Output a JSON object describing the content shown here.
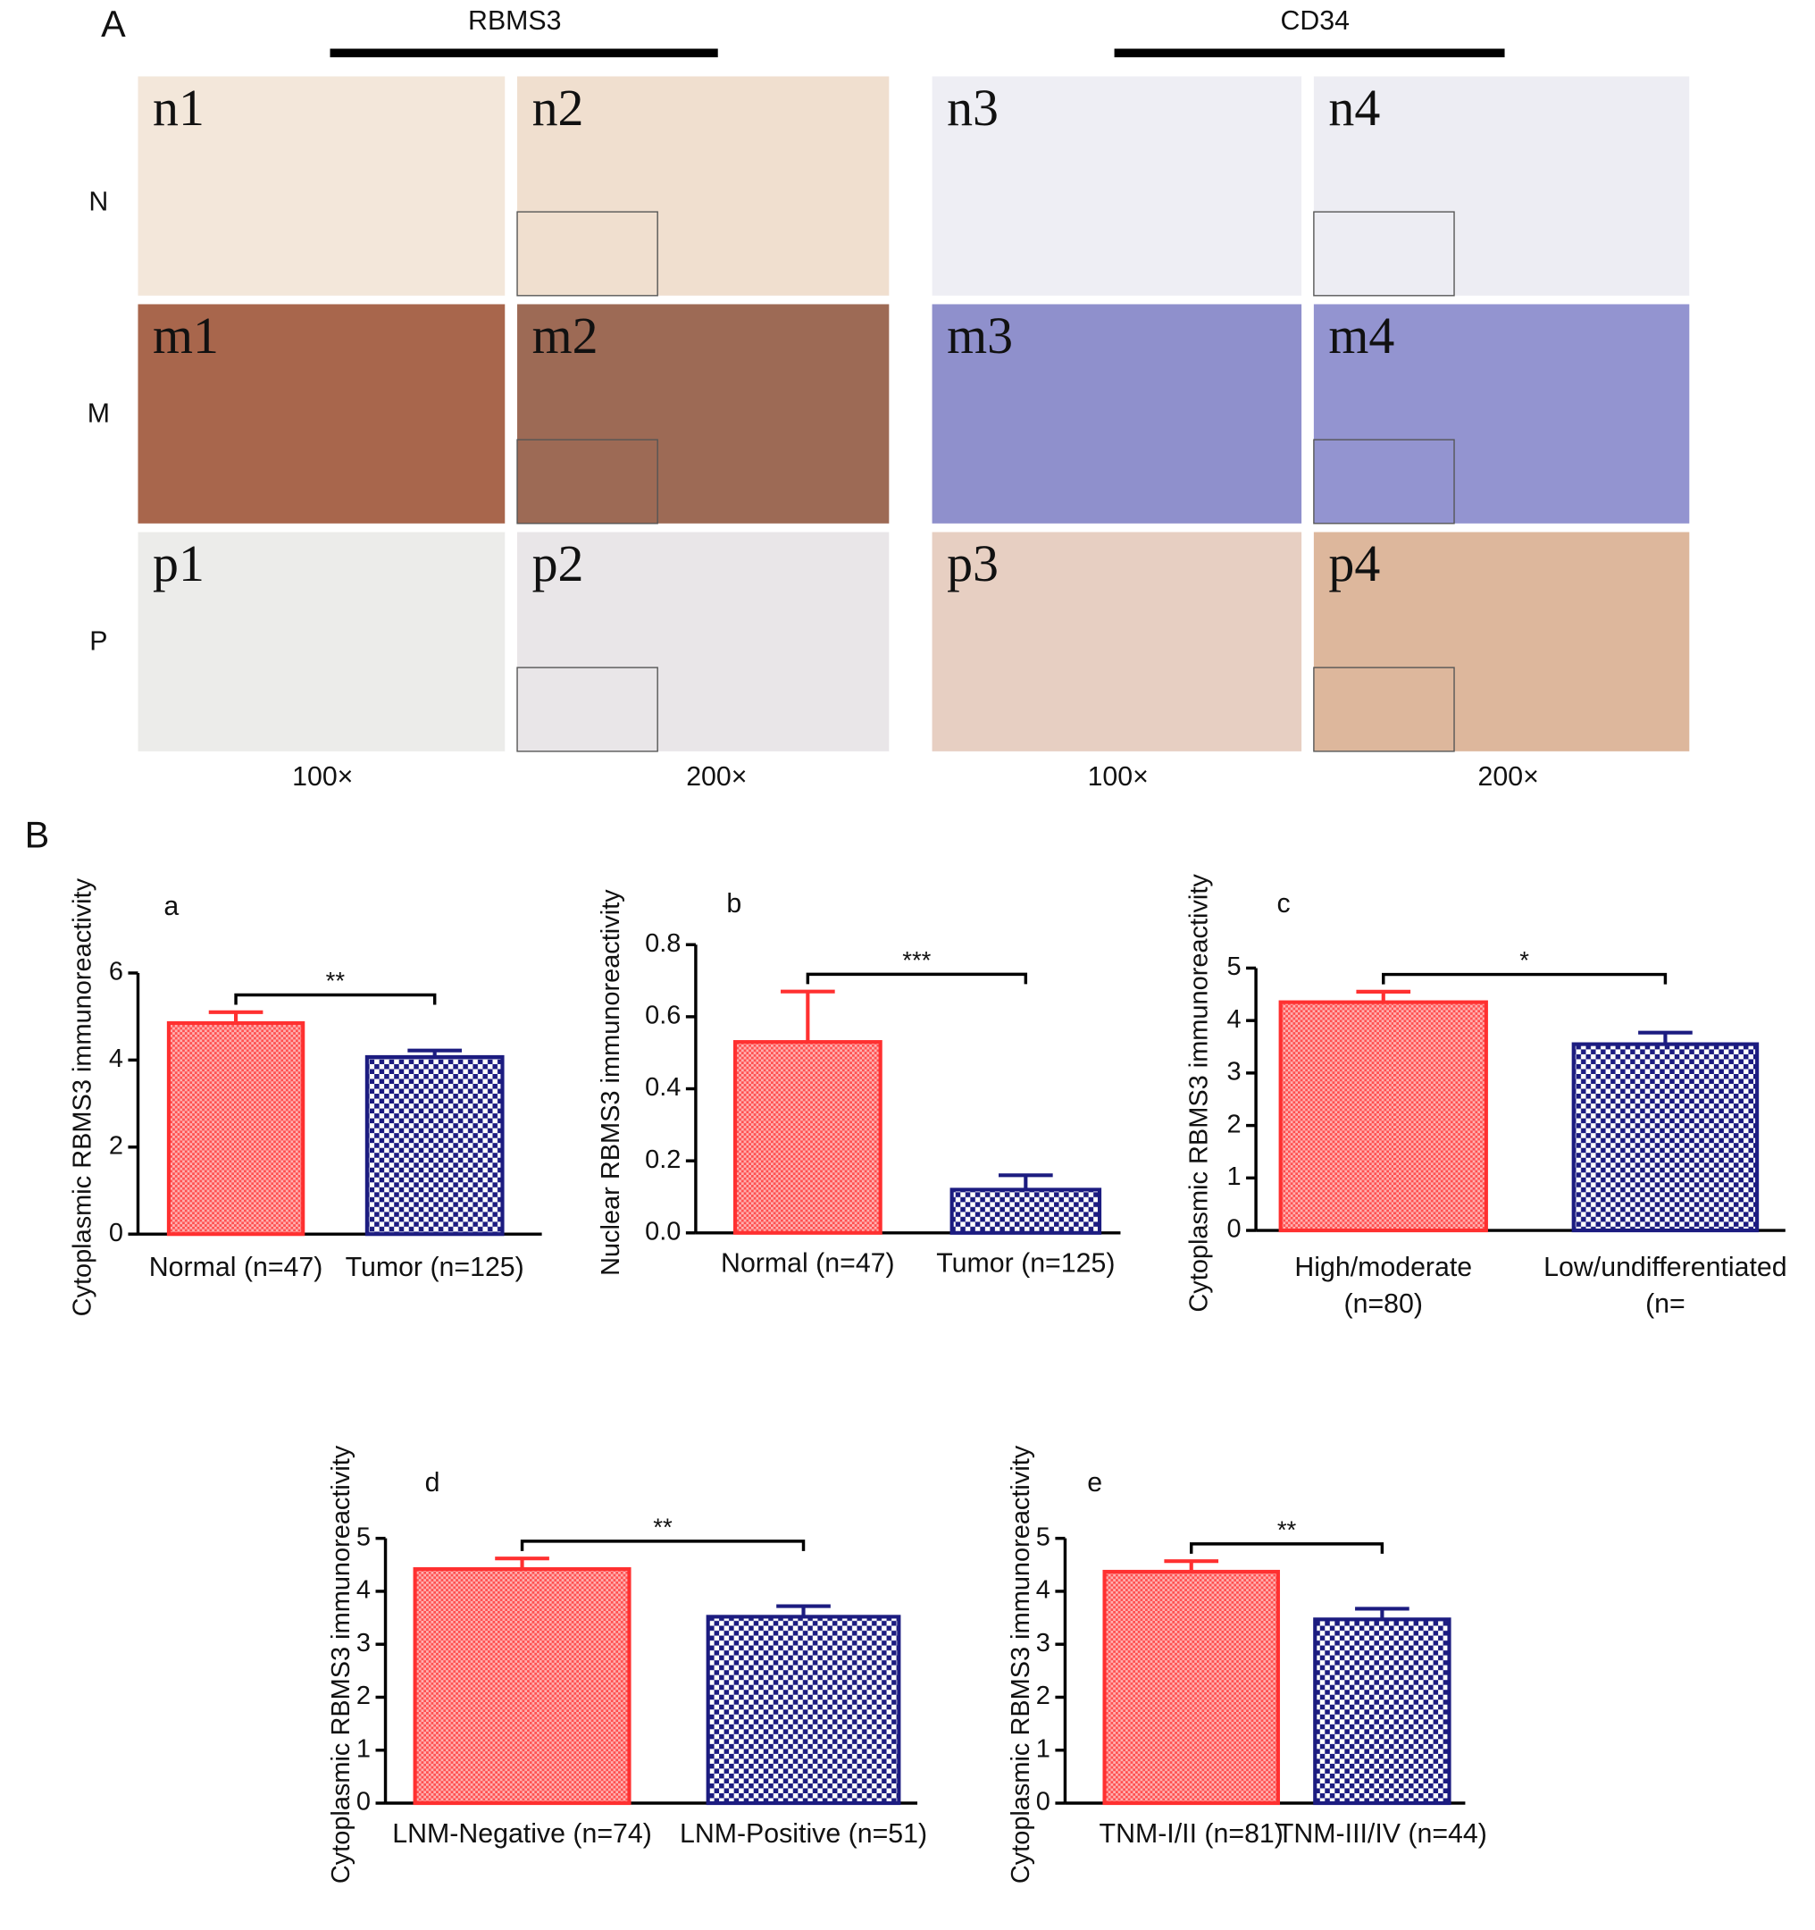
{
  "panel_a": {
    "label": "A",
    "groups": [
      {
        "title": "RBMS3"
      },
      {
        "title": "CD34"
      }
    ],
    "rows": [
      "N",
      "M",
      "P"
    ],
    "images": [
      [
        "n1",
        "n2",
        "n3",
        "n4"
      ],
      [
        "m1",
        "m2",
        "m3",
        "m4"
      ],
      [
        "p1",
        "p2",
        "p3",
        "p4"
      ]
    ],
    "magnifications": [
      "100×",
      "200×",
      "100×",
      "200×"
    ]
  },
  "panel_b": {
    "label": "B"
  },
  "chart_data": [
    {
      "type": "bar",
      "panel": "a",
      "ylabel": "Cytoplasmic RBMS3 immunoreactivity",
      "categories": [
        "Normal (n=47)",
        "Tumor (n=125)"
      ],
      "values": [
        4.85,
        4.07
      ],
      "errors": [
        0.25,
        0.15
      ],
      "colors": [
        "#ff3030",
        "#1c1c80"
      ],
      "significance": "**",
      "ylim": [
        0,
        6
      ],
      "yticks": [
        0,
        2,
        4,
        6
      ]
    },
    {
      "type": "bar",
      "panel": "b",
      "ylabel": "Nuclear RBMS3 immunoreactivity",
      "categories": [
        "Normal (n=47)",
        "Tumor (n=125)"
      ],
      "values": [
        0.53,
        0.12
      ],
      "errors": [
        0.14,
        0.04
      ],
      "colors": [
        "#ff3030",
        "#1c1c80"
      ],
      "significance": "***",
      "ylim": [
        0,
        0.8
      ],
      "yticks": [
        {
          "value": 0,
          "label": "0.0"
        },
        0.2,
        0.4,
        0.6,
        0.8
      ]
    },
    {
      "type": "bar",
      "panel": "c",
      "ylabel": "Cytoplasmic RBMS3 immunoreactivity",
      "categories": [
        [
          "High/moderate",
          "(n=80)"
        ],
        [
          "Low/undifferentiated",
          "(n="
        ]
      ],
      "values": [
        4.35,
        3.55
      ],
      "errors": [
        0.2,
        0.22
      ],
      "colors": [
        "#ff3030",
        "#1c1c80"
      ],
      "significance": "*",
      "ylim": [
        0,
        5
      ],
      "yticks": [
        0,
        1,
        2,
        3,
        4,
        5
      ]
    },
    {
      "type": "bar",
      "panel": "d",
      "ylabel": "Cytoplasmic RBMS3 immunoreactivity",
      "categories": [
        "LNM-Negative (n=74)",
        "LNM-Positive (n=51)"
      ],
      "values": [
        4.42,
        3.52
      ],
      "errors": [
        0.2,
        0.2
      ],
      "colors": [
        "#ff3030",
        "#1c1c80"
      ],
      "significance": "**",
      "ylim": [
        0,
        5
      ],
      "yticks": [
        0,
        1,
        2,
        3,
        4,
        5
      ]
    },
    {
      "type": "bar",
      "panel": "e",
      "ylabel": "Cytoplasmic RBMS3 immunoreactivity",
      "categories": [
        "TNM-I/II (n=81)",
        "TNM-III/IV (n=44)"
      ],
      "values": [
        4.37,
        3.47
      ],
      "errors": [
        0.2,
        0.2
      ],
      "colors": [
        "#ff3030",
        "#1c1c80"
      ],
      "significance": "**",
      "ylim": [
        0,
        5
      ],
      "yticks": [
        0,
        1,
        2,
        3,
        4,
        5
      ]
    }
  ]
}
